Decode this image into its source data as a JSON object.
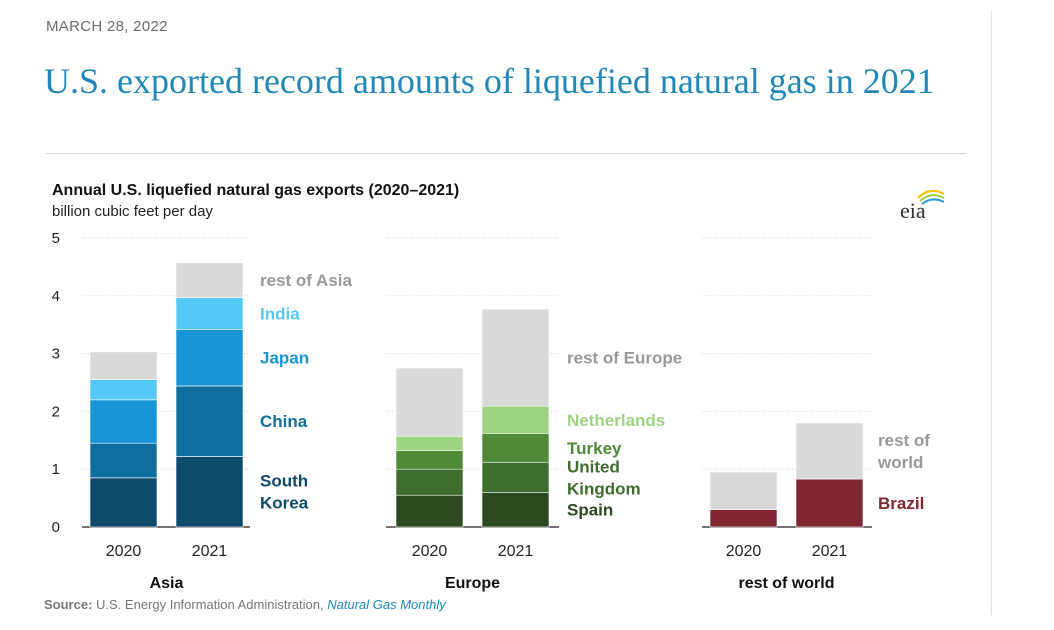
{
  "date": "MARCH 28, 2022",
  "headline": "U.S. exported record amounts of liquefied natural gas in 2021",
  "source": {
    "label": "Source:",
    "text": " U.S. Energy Information Administration, ",
    "publication": "Natural Gas Monthly"
  },
  "logo_text": "eia",
  "chart_data": {
    "type": "bar",
    "stacked": true,
    "title": "Annual U.S. liquefied natural gas exports (2020–2021)",
    "ylabel": "billion cubic feet per day",
    "ylim": [
      0,
      5
    ],
    "yticks": [
      "0",
      "1",
      "2",
      "3",
      "4",
      "5"
    ],
    "categories": [
      "2020",
      "2021"
    ],
    "panels": [
      {
        "name": "Asia",
        "series": [
          {
            "name": "South Korea",
            "label_lines": [
              "South",
              "Korea"
            ],
            "color": "#0d4a6b",
            "values": [
              0.85,
              1.22
            ]
          },
          {
            "name": "China",
            "label_lines": [
              "China"
            ],
            "color": "#106e9e",
            "values": [
              0.6,
              1.22
            ]
          },
          {
            "name": "Japan",
            "label_lines": [
              "Japan"
            ],
            "color": "#1795d6",
            "values": [
              0.75,
              0.98
            ]
          },
          {
            "name": "India",
            "label_lines": [
              "India"
            ],
            "color": "#56c8f5",
            "values": [
              0.35,
              0.55
            ]
          },
          {
            "name": "rest of Asia",
            "label_lines": [
              "rest of Asia"
            ],
            "color": "#d9d9d9",
            "label_color": "#999999",
            "values": [
              0.48,
              0.6
            ]
          }
        ]
      },
      {
        "name": "Europe",
        "series": [
          {
            "name": "Spain",
            "label_lines": [
              "Spain"
            ],
            "color": "#2c4a20",
            "values": [
              0.55,
              0.6
            ]
          },
          {
            "name": "United Kingdom",
            "label_lines": [
              "United",
              "Kingdom"
            ],
            "color": "#3f6d2e",
            "values": [
              0.45,
              0.52
            ]
          },
          {
            "name": "Turkey",
            "label_lines": [
              "Turkey"
            ],
            "color": "#4f8a39",
            "values": [
              0.32,
              0.5
            ]
          },
          {
            "name": "Netherlands",
            "label_lines": [
              "Netherlands"
            ],
            "color": "#9fd384",
            "values": [
              0.25,
              0.47
            ]
          },
          {
            "name": "rest of Europe",
            "label_lines": [
              "rest of Europe"
            ],
            "color": "#d9d9d9",
            "label_color": "#999999",
            "values": [
              1.18,
              1.68
            ]
          }
        ]
      },
      {
        "name": "rest of world",
        "series": [
          {
            "name": "Brazil",
            "label_lines": [
              "Brazil"
            ],
            "color": "#7f2630",
            "values": [
              0.3,
              0.83
            ]
          },
          {
            "name": "rest of world",
            "label_lines": [
              "rest of",
              "world"
            ],
            "color": "#d9d9d9",
            "label_color": "#999999",
            "values": [
              0.65,
              0.97
            ]
          }
        ]
      }
    ]
  }
}
